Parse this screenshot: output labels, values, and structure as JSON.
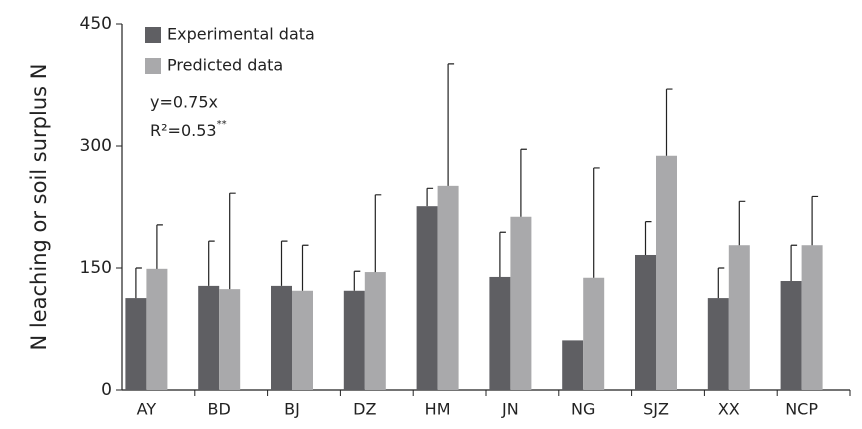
{
  "chart_data": {
    "type": "bar",
    "y_label": "N leaching or soil surplus N",
    "annotations": [
      "y=0.75x",
      "R²=0.53",
      "**"
    ],
    "categories": [
      "AY",
      "BD",
      "BJ",
      "DZ",
      "HM",
      "JN",
      "NG",
      "SJZ",
      "XX",
      "NCP"
    ],
    "series": [
      {
        "name": "Experimental data",
        "color": "#5f5f63",
        "values": [
          113,
          128,
          128,
          122,
          226,
          139,
          61,
          166,
          113,
          134
        ],
        "errors": [
          37,
          55,
          55,
          24,
          22,
          55,
          null,
          41,
          37,
          44
        ]
      },
      {
        "name": "Predicted data",
        "color": "#a9a9ab",
        "values": [
          149,
          124,
          122,
          145,
          251,
          213,
          138,
          288,
          178,
          178
        ],
        "errors": [
          54,
          118,
          56,
          95,
          150,
          83,
          135,
          82,
          54,
          60
        ]
      }
    ],
    "ylim": [
      0,
      450
    ],
    "yticks": [
      0,
      150,
      300,
      450
    ],
    "grid": false,
    "legend": "top-left"
  }
}
